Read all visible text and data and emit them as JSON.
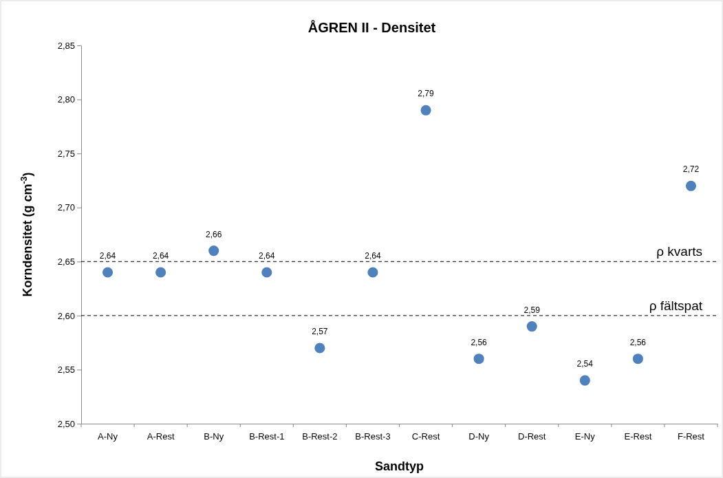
{
  "chart_data": {
    "type": "scatter",
    "title": "ÅGREN II - Densitet",
    "xlabel": "Sandtyp",
    "ylabel": "Korndensitet (g cm$^{-3}$)",
    "categories": [
      "A-Ny",
      "A-Rest",
      "B-Ny",
      "B-Rest-1",
      "B-Rest-2",
      "B-Rest-3",
      "C-Rest",
      "D-Ny",
      "D-Rest",
      "E-Ny",
      "E-Rest",
      "F-Rest"
    ],
    "series": [
      {
        "color": "#4f81bd",
        "values": [
          2.64,
          2.64,
          2.66,
          2.64,
          2.57,
          2.64,
          2.79,
          2.56,
          2.59,
          2.54,
          2.56,
          2.72
        ],
        "value_labels": [
          "2,64",
          "2,64",
          "2,66",
          "2,64",
          "2,57",
          "2,64",
          "2,79",
          "2,56",
          "2,59",
          "2,54",
          "2,56",
          "2,72"
        ]
      }
    ],
    "ylim": [
      2.5,
      2.85
    ],
    "yticks": [
      {
        "value": 2.5,
        "label": "2,50"
      },
      {
        "value": 2.55,
        "label": "2,55"
      },
      {
        "value": 2.6,
        "label": "2,60"
      },
      {
        "value": 2.65,
        "label": "2,65"
      },
      {
        "value": 2.7,
        "label": "2,70"
      },
      {
        "value": 2.75,
        "label": "2,75"
      },
      {
        "value": 2.8,
        "label": "2,80"
      },
      {
        "value": 2.85,
        "label": "2,85"
      }
    ],
    "ref_lines": [
      {
        "axis": "y",
        "value": 2.65,
        "label": "ρ kvarts",
        "color": "#000000",
        "line_style": "dashed"
      },
      {
        "axis": "y",
        "value": 2.6,
        "label": "ρ fältspat",
        "color": "#000000",
        "line_style": "dashed"
      }
    ],
    "marker": "circle",
    "grid": false
  }
}
